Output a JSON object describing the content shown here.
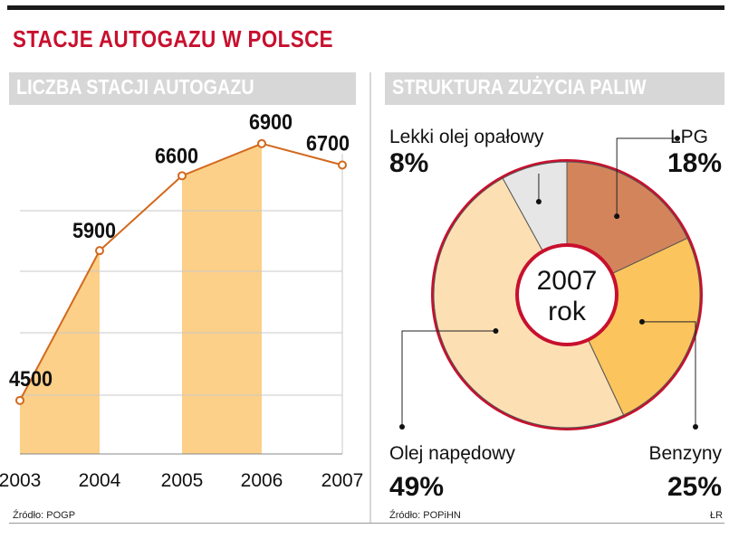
{
  "title": "STACJE AUTOGAZU W POLSCE",
  "left_panel": {
    "title": "LICZBA STACJI AUTOGAZU",
    "source": "Źródło: POGP"
  },
  "right_panel": {
    "title": "STRUKTURA ZUŻYCIA PALIW",
    "source": "Źródło: POPiHN",
    "credit": "ŁR",
    "center_label_line1": "2007",
    "center_label_line2": "rok"
  },
  "colors": {
    "accent": "#c8102e",
    "band": "#fcd088",
    "line": "#d2691e",
    "lpg": "#d4845b",
    "benzyny": "#fcc45c",
    "olej_napedowy": "#fce0b4",
    "lekki_olej": "#e6e6e6"
  },
  "chart_data": [
    {
      "type": "line",
      "x": [
        "2003",
        "2004",
        "2005",
        "2006",
        "2007"
      ],
      "values": [
        4500,
        5900,
        6600,
        6900,
        6700
      ],
      "data_labels": [
        "4500",
        "5900",
        "6600",
        "6900",
        "6700"
      ],
      "ylim": [
        4000,
        7000
      ],
      "grid": true
    },
    {
      "type": "pie",
      "slices": [
        {
          "label": "LPG",
          "value": 18,
          "pct_label": "18%"
        },
        {
          "label": "Benzyny",
          "value": 25,
          "pct_label": "25%"
        },
        {
          "label": "Olej napędowy",
          "value": 49,
          "pct_label": "49%"
        },
        {
          "label": "Lekki olej opałowy",
          "value": 8,
          "pct_label": "8%"
        }
      ]
    }
  ]
}
